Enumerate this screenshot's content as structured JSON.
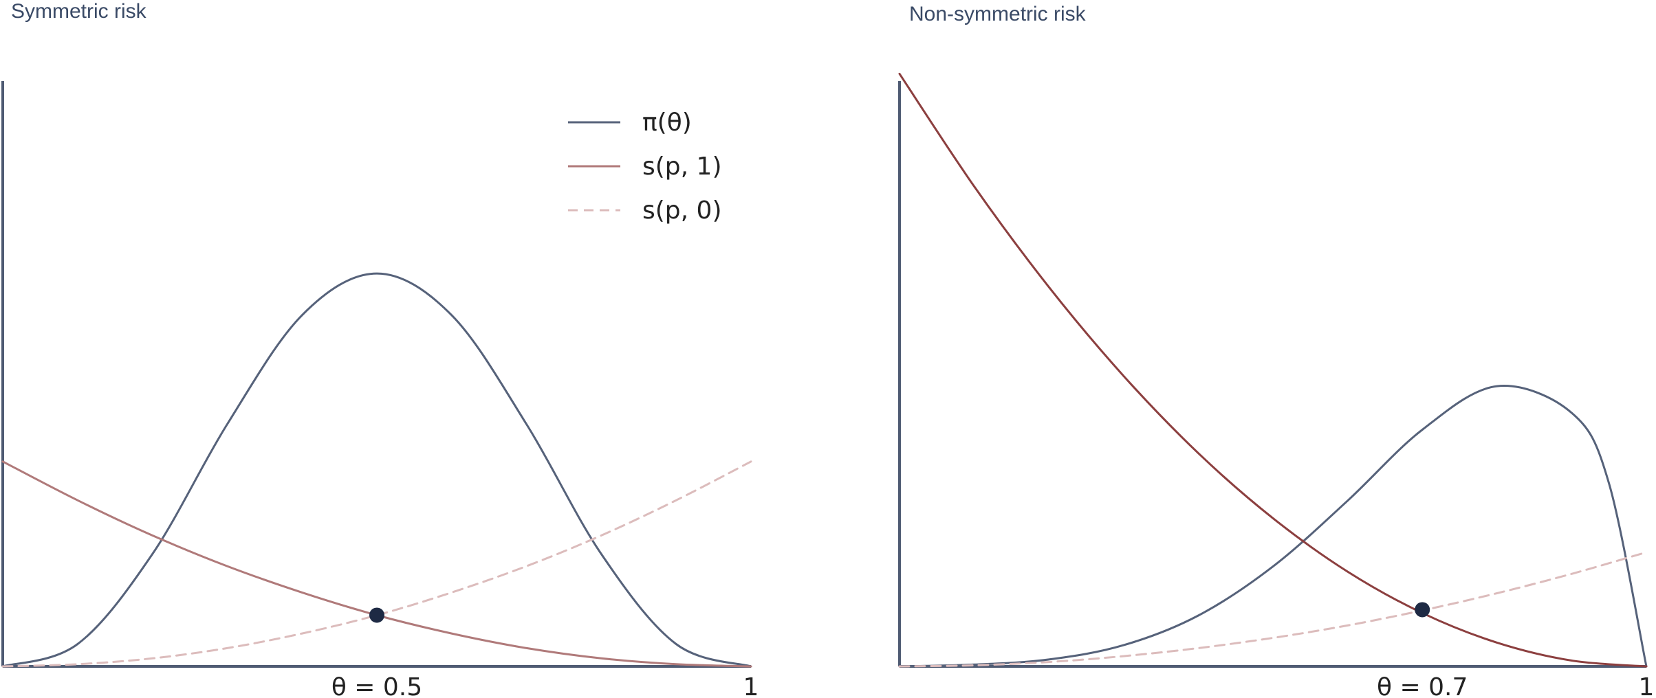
{
  "chart_data": [
    {
      "type": "line",
      "title": "Symmetric risk",
      "xlabel": "",
      "ylabel": "",
      "xlim": [
        0,
        1
      ],
      "ylim": [
        0,
        1.6
      ],
      "grid": false,
      "legend": "top-right",
      "x_ticks": [
        {
          "value": 0.5,
          "label": "θ = 0.5"
        },
        {
          "value": 1,
          "label": "1"
        }
      ],
      "series": [
        {
          "name": "π(θ)",
          "style": "solid",
          "color": "#56627a",
          "x": [
            0,
            0.1,
            0.2,
            0.3,
            0.4,
            0.5,
            0.6,
            0.7,
            0.8,
            0.9,
            1
          ],
          "y": [
            0,
            0.061,
            0.307,
            0.662,
            0.96,
            1.074,
            0.96,
            0.662,
            0.307,
            0.061,
            0
          ]
        },
        {
          "name": "s(p, 1)",
          "style": "solid",
          "color": "#b07a7a",
          "x": [
            0,
            0.1,
            0.2,
            0.3,
            0.4,
            0.5,
            0.6,
            0.7,
            0.8,
            0.9,
            1
          ],
          "y": [
            0.56,
            0.454,
            0.358,
            0.274,
            0.202,
            0.14,
            0.09,
            0.05,
            0.022,
            0.006,
            0
          ]
        },
        {
          "name": "s(p, 0)",
          "style": "dashed",
          "color": "#dcbcbc",
          "x": [
            0,
            0.1,
            0.2,
            0.3,
            0.4,
            0.5,
            0.6,
            0.7,
            0.8,
            0.9,
            1
          ],
          "y": [
            0,
            0.006,
            0.022,
            0.05,
            0.09,
            0.14,
            0.202,
            0.274,
            0.358,
            0.454,
            0.56
          ]
        }
      ],
      "points": [
        {
          "x": 0.5,
          "y": 0.14
        }
      ]
    },
    {
      "type": "line",
      "title": "Non-symmetric risk",
      "xlabel": "",
      "ylabel": "",
      "xlim": [
        0,
        1
      ],
      "ylim": [
        0,
        1.6
      ],
      "grid": false,
      "x_ticks": [
        {
          "value": 0.7,
          "label": "θ = 0.7"
        },
        {
          "value": 1,
          "label": "1"
        }
      ],
      "series": [
        {
          "style": "solid",
          "color": "#56627a",
          "x": [
            0,
            0.1,
            0.2,
            0.3,
            0.4,
            0.5,
            0.6,
            0.7,
            0.8,
            0.9,
            0.95,
            1
          ],
          "y": [
            0,
            0.005,
            0.019,
            0.058,
            0.139,
            0.273,
            0.453,
            0.647,
            0.766,
            0.693,
            0.5,
            0
          ]
        },
        {
          "style": "solid",
          "color": "#8c3f3f",
          "x": [
            0,
            0.1,
            0.2,
            0.3,
            0.4,
            0.5,
            0.6,
            0.7,
            0.8,
            0.9,
            1
          ],
          "y": [
            1.62,
            1.312,
            1.037,
            0.794,
            0.583,
            0.405,
            0.259,
            0.146,
            0.065,
            0.016,
            0
          ]
        },
        {
          "style": "dashed",
          "color": "#dcbcbc",
          "x": [
            0,
            0.1,
            0.2,
            0.3,
            0.4,
            0.5,
            0.6,
            0.7,
            0.8,
            0.9,
            1
          ],
          "y": [
            0,
            0.003,
            0.012,
            0.028,
            0.05,
            0.078,
            0.112,
            0.153,
            0.2,
            0.253,
            0.312
          ]
        }
      ],
      "points": [
        {
          "x": 0.7,
          "y": 0.155
        }
      ]
    }
  ]
}
